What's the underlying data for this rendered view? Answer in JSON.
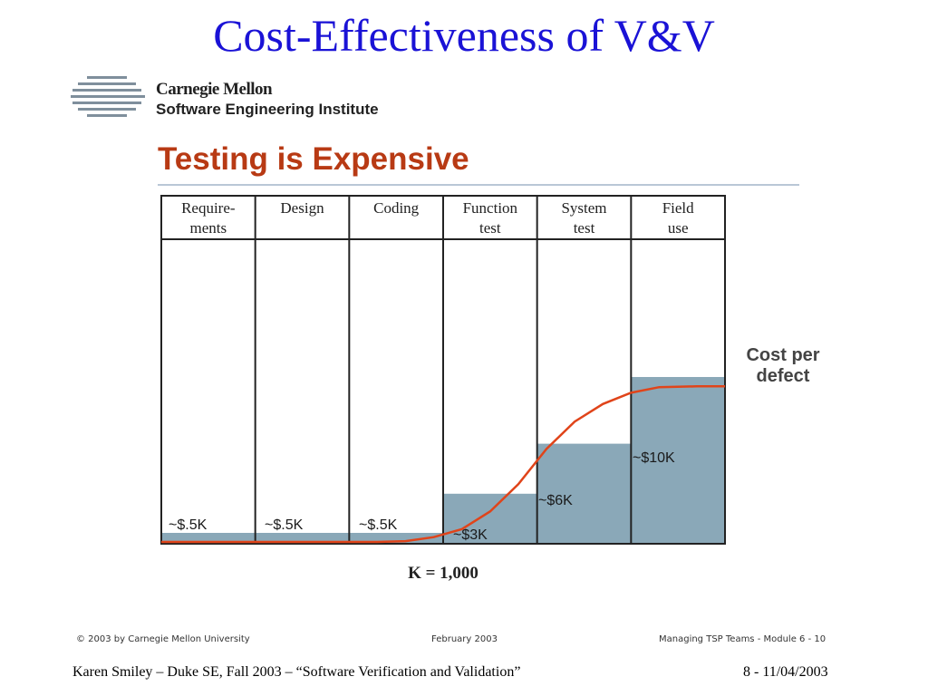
{
  "slide": {
    "title": "Cost-Effectiveness of V&V"
  },
  "logo": {
    "line1": "Carnegie Mellon",
    "line2": "Software Engineering Institute"
  },
  "section_title": "Testing is Expensive",
  "chart_data": {
    "type": "bar",
    "title": "Testing is Expensive",
    "categories": [
      "Require-\nments",
      "Design",
      "Coding",
      "Function\ntest",
      "System\ntest",
      "Field\nuse"
    ],
    "values": [
      0.5,
      0.5,
      0.5,
      3,
      6,
      10
    ],
    "value_labels": [
      "~$.5K",
      "~$.5K",
      "~$.5K",
      "~$3K",
      "~$6K",
      "~$10K"
    ],
    "unit": "K",
    "unit_note": "K = 1,000",
    "series_label": "Cost per\ndefect",
    "bar_color": "#8aa8b8",
    "curve_color": "#e0441a",
    "curve": [
      {
        "x": 0.0,
        "y": 0.0
      },
      {
        "x": 2.3,
        "y": 0.0
      },
      {
        "x": 2.6,
        "y": 0.05
      },
      {
        "x": 2.9,
        "y": 0.3
      },
      {
        "x": 3.2,
        "y": 0.8
      },
      {
        "x": 3.5,
        "y": 1.9
      },
      {
        "x": 3.8,
        "y": 3.6
      },
      {
        "x": 4.1,
        "y": 5.8
      },
      {
        "x": 4.4,
        "y": 7.5
      },
      {
        "x": 4.7,
        "y": 8.6
      },
      {
        "x": 5.0,
        "y": 9.3
      },
      {
        "x": 5.3,
        "y": 9.65
      },
      {
        "x": 5.7,
        "y": 9.7
      },
      {
        "x": 6.0,
        "y": 9.7
      }
    ],
    "ylim": [
      0,
      10
    ]
  },
  "footer_small": {
    "left": "© 2003 by Carnegie Mellon University",
    "center": "February 2003",
    "right": "Managing TSP Teams - Module 6 - 10"
  },
  "footer": {
    "left": "Karen Smiley – Duke SE, Fall 2003 – “Software Verification and Validation”",
    "right": "8 - 11/04/2003"
  },
  "colors": {
    "title": "#1a12d6",
    "section_title": "#b83a14"
  }
}
